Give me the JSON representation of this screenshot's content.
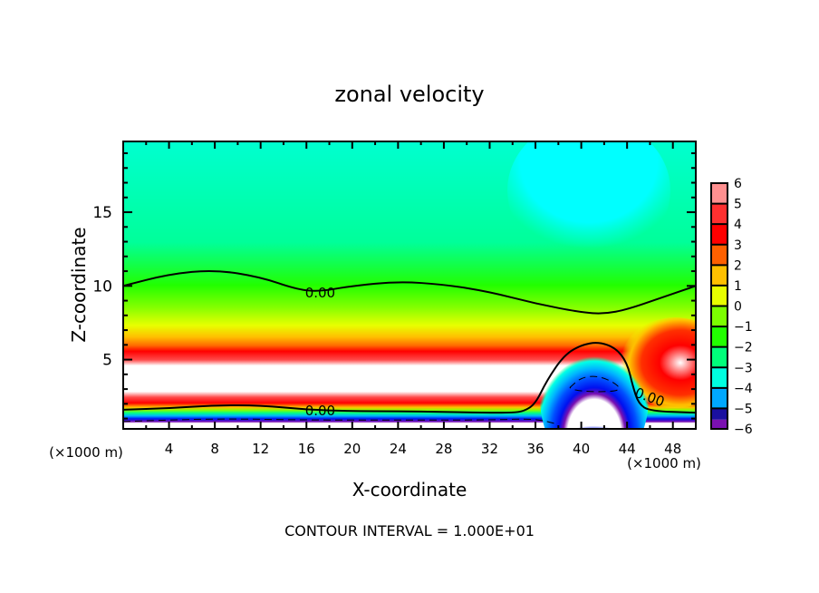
{
  "chart_data": {
    "type": "heatmap",
    "title": "zonal velocity",
    "xlabel": "X-coordinate",
    "ylabel": "Z-coordinate",
    "x_units": "(×1000 m)",
    "y_units": "(×1000 m)",
    "xlim": [
      0,
      50
    ],
    "ylim": [
      0.3,
      19.8
    ],
    "x_ticks": [
      4,
      8,
      12,
      16,
      20,
      24,
      28,
      32,
      36,
      40,
      44,
      48
    ],
    "y_ticks": [
      5,
      10,
      15
    ],
    "footer": "CONTOUR INTERVAL = 1.000E+01",
    "colorbar": {
      "levels": [
        6,
        5,
        4,
        3,
        2,
        1,
        0,
        -1,
        -2,
        -3,
        -4,
        -5,
        -6
      ],
      "labels": [
        "6",
        "5",
        "4",
        "3",
        "2",
        "1",
        "0",
        "−1",
        "−2",
        "−3",
        "−4",
        "−5",
        "−6"
      ],
      "colors": [
        "#ff9090",
        "#ff4a4a",
        "#ff0000",
        "#ff6a00",
        "#ffc000",
        "#e8ff00",
        "#88ff00",
        "#22ff00",
        "#00ff88",
        "#00ffe6",
        "#00b4ff",
        "#0050ff",
        "#0010f0",
        "#1a10a0",
        "#7a10b0"
      ],
      "over_color": "#ffffff",
      "under_color": "#ffffff"
    },
    "contour_labels": [
      {
        "text": "0.00",
        "x": 17.2,
        "z": 9.6
      },
      {
        "text": "0.00",
        "x": 17.2,
        "z": 1.6
      },
      {
        "text": "0.00",
        "x": 46.0,
        "z": 2.5
      }
    ],
    "zero_contour_upper": [
      [
        0,
        10.0
      ],
      [
        4,
        10.8
      ],
      [
        8,
        11.1
      ],
      [
        12,
        10.6
      ],
      [
        15,
        9.8
      ],
      [
        17,
        9.6
      ],
      [
        20,
        10.0
      ],
      [
        24,
        10.3
      ],
      [
        28,
        10.1
      ],
      [
        32,
        9.6
      ],
      [
        36,
        8.8
      ],
      [
        40,
        8.2
      ],
      [
        42,
        8.1
      ],
      [
        44,
        8.4
      ],
      [
        47,
        9.2
      ],
      [
        50,
        10.0
      ]
    ],
    "zero_contour_lower": [
      [
        0,
        1.6
      ],
      [
        4,
        1.7
      ],
      [
        8,
        1.9
      ],
      [
        12,
        1.9
      ],
      [
        16,
        1.6
      ],
      [
        20,
        1.5
      ],
      [
        24,
        1.5
      ],
      [
        28,
        1.45
      ],
      [
        32,
        1.4
      ],
      [
        34,
        1.4
      ],
      [
        35,
        1.5
      ],
      [
        36,
        2.0
      ],
      [
        37,
        3.6
      ],
      [
        38.5,
        5.3
      ],
      [
        40,
        6.0
      ],
      [
        41.5,
        6.2
      ],
      [
        43,
        5.8
      ],
      [
        44,
        4.8
      ],
      [
        44.5,
        3.2
      ],
      [
        45,
        2.0
      ],
      [
        46,
        1.5
      ],
      [
        50,
        1.4
      ]
    ],
    "dashed_contour_lower": [
      [
        0,
        0.8
      ],
      [
        8,
        1.0
      ],
      [
        16,
        0.9
      ],
      [
        24,
        0.9
      ],
      [
        32,
        0.9
      ],
      [
        36,
        1.0
      ],
      [
        38,
        0.6
      ]
    ],
    "dashed_contour_core": [
      [
        39,
        3.1
      ],
      [
        40,
        3.8
      ],
      [
        41.5,
        3.9
      ],
      [
        43,
        3.4
      ],
      [
        43.5,
        2.9
      ],
      [
        41.5,
        2.8
      ],
      [
        39.5,
        2.9
      ],
      [
        39,
        3.1
      ]
    ],
    "field_description": {
      "upper_region": {
        "z_range": [
          12,
          19.8
        ],
        "value_range": [
          -2,
          -1
        ],
        "min_near_x": 41
      },
      "jet_band": {
        "z_range": [
          2.5,
          5.5
        ],
        "value": "> 6",
        "x_range": [
          0,
          35
        ]
      },
      "lower_jet": {
        "z_range": [
          0.5,
          1.5
        ],
        "value": "< -6"
      },
      "dome": {
        "center_x": 41,
        "z_top": 6.2,
        "core_value": "< -6"
      },
      "right_max": {
        "x": 48,
        "z": 5,
        "value": "> 6"
      }
    }
  }
}
